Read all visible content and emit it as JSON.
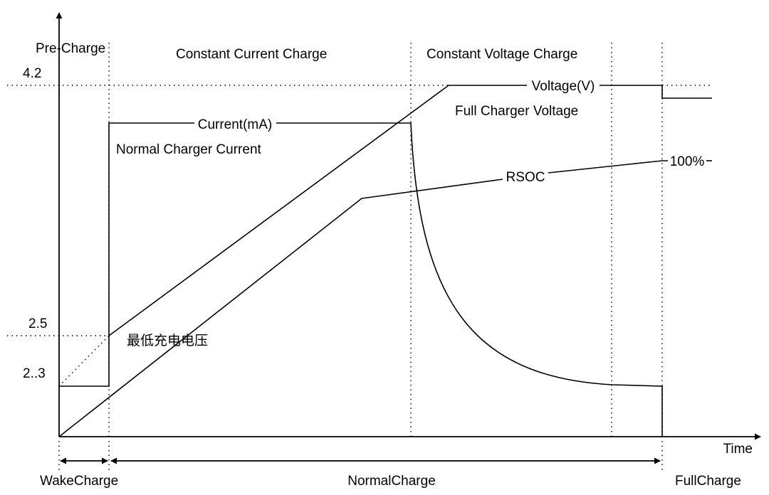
{
  "axes": {
    "x_label": "Time"
  },
  "y_ticks": [
    "4.2",
    "2.5",
    "2..3"
  ],
  "phases": {
    "pre_charge": "Pre-Charge",
    "constant_current": "Constant Current Charge",
    "constant_voltage": "Constant Voltage Charge"
  },
  "curves": {
    "current": {
      "label": "Current(mA)",
      "note": "Normal Charger Current"
    },
    "voltage": {
      "label": "Voltage(V)",
      "note": "Full Charger Voltage"
    },
    "rsoc": {
      "label": "RSOC",
      "end_label": "100%"
    }
  },
  "annotations": {
    "min_charge_voltage": "最低充电电压"
  },
  "stages": {
    "wake": "WakeCharge",
    "normal": "NormalCharge",
    "full": "FullCharge"
  },
  "colors": {
    "ink": "#000000",
    "background": "#ffffff"
  }
}
